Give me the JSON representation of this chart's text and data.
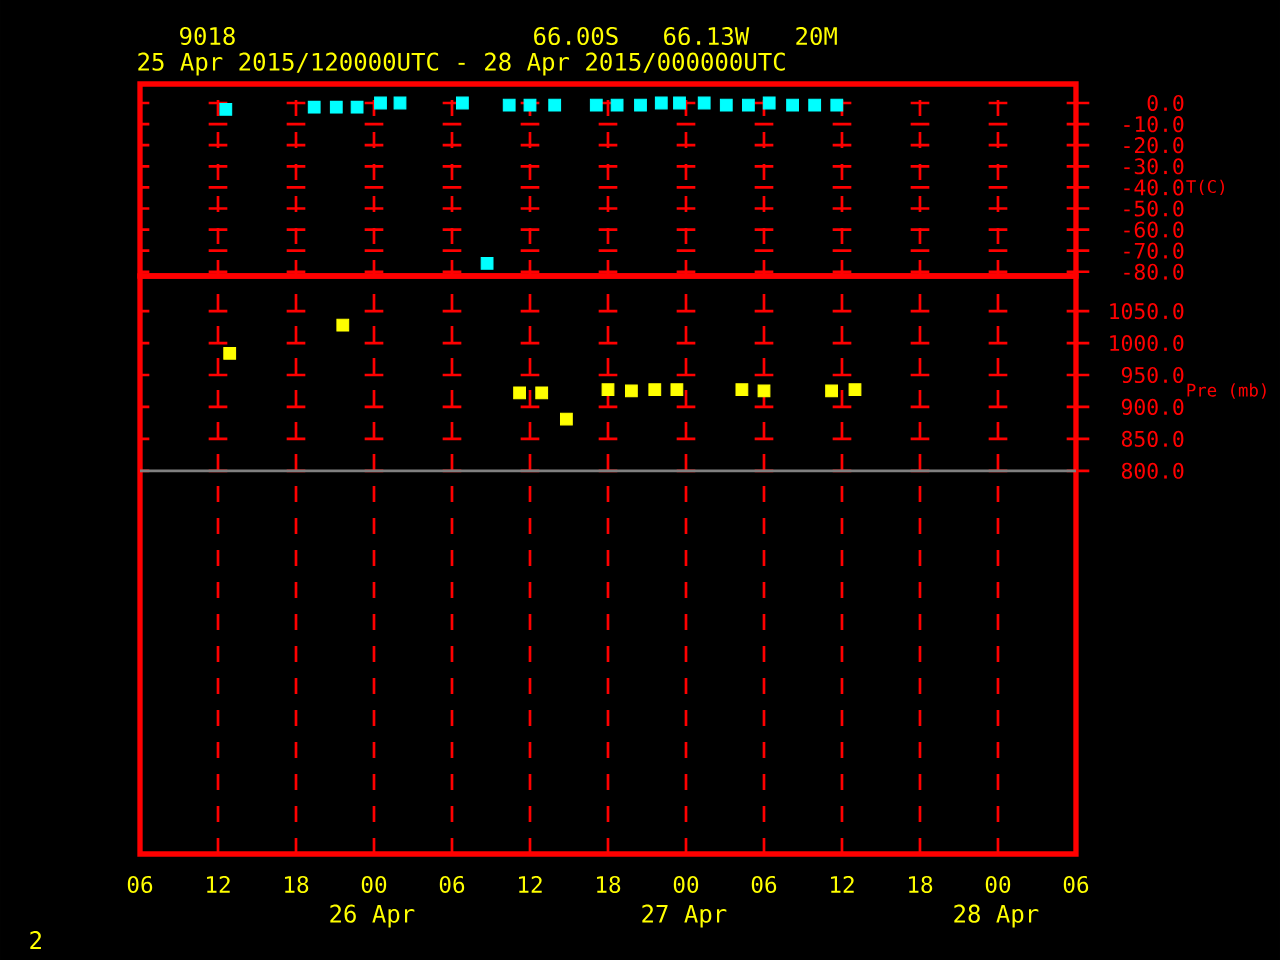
{
  "chart_data": [
    {
      "type": "scatter",
      "title": "9018",
      "subtitle": "25 Apr 2015/120000UTC - 28 Apr 2015/000000UTC",
      "annotations": [
        "66.00S",
        "66.13W",
        "20M"
      ],
      "ylabel": "T(C)",
      "xlim": [
        "2015-04-25T06:00",
        "2015-04-28T06:00"
      ],
      "xticks": [
        {
          "value": "2015-04-25T06:00",
          "label": null
        },
        {
          "value": "2015-04-25T12:00",
          "label": null
        },
        {
          "value": "2015-04-25T18:00",
          "label": null
        },
        {
          "value": "2015-04-26T00:00",
          "label": null
        },
        {
          "value": "2015-04-26T06:00",
          "label": null
        },
        {
          "value": "2015-04-26T12:00",
          "label": null
        },
        {
          "value": "2015-04-26T18:00",
          "label": null
        },
        {
          "value": "2015-04-27T00:00",
          "label": null
        },
        {
          "value": "2015-04-27T06:00",
          "label": null
        },
        {
          "value": "2015-04-27T12:00",
          "label": null
        },
        {
          "value": "2015-04-27T18:00",
          "label": null
        },
        {
          "value": "2015-04-28T00:00",
          "label": null
        },
        {
          "value": "2015-04-28T06:00",
          "label": null
        }
      ],
      "ylim": [
        -82,
        9
      ],
      "yticks": [
        {
          "value": 0,
          "label": "0.0"
        },
        {
          "value": -10,
          "label": "-10.0"
        },
        {
          "value": -20,
          "label": "-20.0"
        },
        {
          "value": -30,
          "label": "-30.0"
        },
        {
          "value": -40,
          "label": "-40.0"
        },
        {
          "value": -50,
          "label": "-50.0"
        },
        {
          "value": -60,
          "label": "-60.0"
        },
        {
          "value": -70,
          "label": "-70.0"
        },
        {
          "value": -80,
          "label": "-80.0"
        }
      ],
      "tick_labels": "y",
      "grid": true,
      "marker": "square",
      "series": [
        {
          "color": "#00ffff",
          "x": [
            "2015-04-25T12:36",
            "2015-04-25T19:24",
            "2015-04-25T21:06",
            "2015-04-25T22:42",
            "2015-04-26T00:30",
            "2015-04-26T02:00",
            "2015-04-26T06:48",
            "2015-04-26T08:42",
            "2015-04-26T10:24",
            "2015-04-26T12:00",
            "2015-04-26T13:54",
            "2015-04-26T17:06",
            "2015-04-26T18:42",
            "2015-04-26T20:30",
            "2015-04-26T22:06",
            "2015-04-26T23:30",
            "2015-04-27T01:24",
            "2015-04-27T03:06",
            "2015-04-27T04:48",
            "2015-04-27T06:24",
            "2015-04-27T08:12",
            "2015-04-27T09:54",
            "2015-04-27T11:36"
          ],
          "values": [
            -3,
            -2,
            -2,
            -2,
            0,
            0,
            0,
            -76,
            -1,
            -1,
            -1,
            -1,
            -1,
            -1,
            0,
            0,
            0,
            -1,
            -1,
            0,
            -1,
            -1,
            -1
          ]
        }
      ]
    },
    {
      "type": "scatter",
      "annotations": [
        "26 Apr",
        "27 Apr",
        "28 Apr",
        "2"
      ],
      "ylabel": "Pre (mb)",
      "xlim": [
        "2015-04-25T06:00",
        "2015-04-28T06:00"
      ],
      "xticks": [
        {
          "value": "2015-04-25T06:00",
          "label": "06"
        },
        {
          "value": "2015-04-25T12:00",
          "label": "12"
        },
        {
          "value": "2015-04-25T18:00",
          "label": "18"
        },
        {
          "value": "2015-04-26T00:00",
          "label": "00"
        },
        {
          "value": "2015-04-26T06:00",
          "label": "06"
        },
        {
          "value": "2015-04-26T12:00",
          "label": "12"
        },
        {
          "value": "2015-04-26T18:00",
          "label": "18"
        },
        {
          "value": "2015-04-27T00:00",
          "label": "00"
        },
        {
          "value": "2015-04-27T06:00",
          "label": "06"
        },
        {
          "value": "2015-04-27T12:00",
          "label": "12"
        },
        {
          "value": "2015-04-27T18:00",
          "label": "18"
        },
        {
          "value": "2015-04-28T00:00",
          "label": "00"
        },
        {
          "value": "2015-04-28T06:00",
          "label": "06"
        }
      ],
      "ylim": [
        200,
        1105
      ],
      "yticks": [
        {
          "value": 800,
          "label": "800.0"
        },
        {
          "value": 850,
          "label": "850.0"
        },
        {
          "value": 900,
          "label": "900.0"
        },
        {
          "value": 950,
          "label": "950.0"
        },
        {
          "value": 1000,
          "label": "1000.0"
        },
        {
          "value": 1050,
          "label": "1050.0"
        }
      ],
      "grid": true,
      "marker": "square",
      "ref_lines": [
        {
          "axis": "y",
          "value": 800,
          "color": "#808080"
        }
      ],
      "series": [
        {
          "color": "#ffff00",
          "x": [
            "2015-04-25T12:54",
            "2015-04-25T21:36",
            "2015-04-26T11:12",
            "2015-04-26T12:54",
            "2015-04-26T14:48",
            "2015-04-26T18:00",
            "2015-04-26T19:48",
            "2015-04-26T21:36",
            "2015-04-26T23:18",
            "2015-04-27T04:18",
            "2015-04-27T06:00",
            "2015-04-27T11:12",
            "2015-04-27T13:00"
          ],
          "values": [
            984,
            1028,
            922,
            922,
            881,
            927,
            925,
            927,
            927,
            927,
            925,
            925,
            927
          ]
        }
      ]
    }
  ]
}
